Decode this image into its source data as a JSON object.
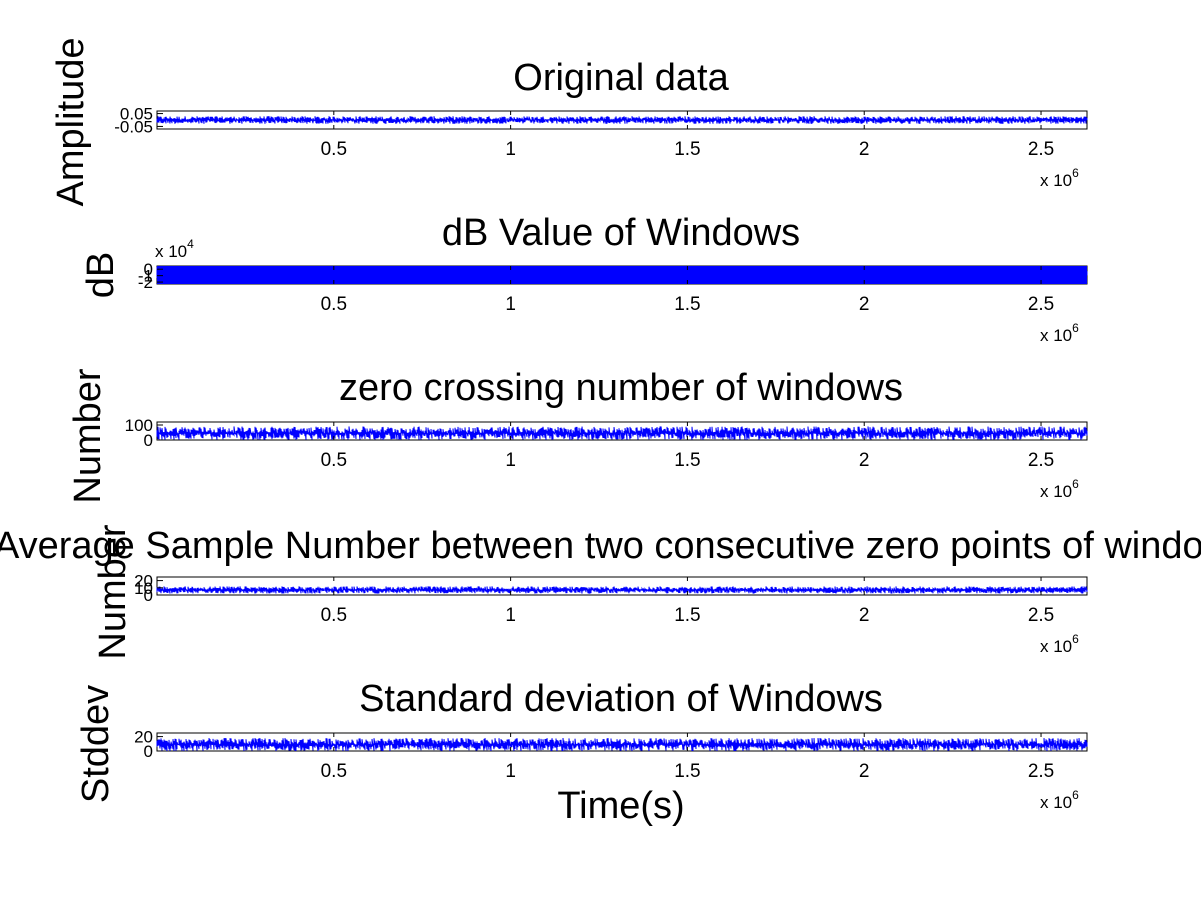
{
  "figure": {
    "xlabel": "Time(s)",
    "background": "#ffffff",
    "line_color": "#0000ff"
  },
  "chart_data": [
    {
      "type": "line",
      "title": "Original data",
      "ylabel": "Amplitude",
      "xlabel": "",
      "xlim": [
        0,
        2.63
      ],
      "ylim": [
        -0.07,
        0.07
      ],
      "x_tick_values": [
        0.5,
        1,
        1.5,
        2,
        2.5
      ],
      "x_tick_labels": [
        "0.5",
        "1",
        "1.5",
        "2",
        "2.5"
      ],
      "x_multiplier": {
        "base": "x 10",
        "exp": "6"
      },
      "y_tick_values": [
        0.05,
        -0.05
      ],
      "y_tick_labels": [
        "0.05",
        "-0.05"
      ],
      "y_multiplier": null,
      "trace_band": [
        -0.03,
        0.03
      ],
      "series": [
        {
          "color": "#0000ff"
        }
      ]
    },
    {
      "type": "line",
      "title": "dB Value of Windows",
      "ylabel": "dB",
      "xlabel": "",
      "xlim": [
        0,
        2.63
      ],
      "ylim": [
        -2.3,
        0.5
      ],
      "x_tick_values": [
        0.5,
        1,
        1.5,
        2,
        2.5
      ],
      "x_tick_labels": [
        "0.5",
        "1",
        "1.5",
        "2",
        "2.5"
      ],
      "x_multiplier": {
        "base": "x 10",
        "exp": "6"
      },
      "y_tick_values": [
        0,
        -1,
        -2
      ],
      "y_tick_labels": [
        "0",
        "-1",
        "-2"
      ],
      "y_multiplier": {
        "base": "x 10",
        "exp": "4"
      },
      "trace_band": [
        -2.3,
        0.5
      ],
      "series": [
        {
          "color": "#0000ff"
        }
      ]
    },
    {
      "type": "line",
      "title": "zero crossing number of windows",
      "ylabel": "Number",
      "xlabel": "",
      "xlim": [
        0,
        2.63
      ],
      "ylim": [
        0,
        120
      ],
      "x_tick_values": [
        0.5,
        1,
        1.5,
        2,
        2.5
      ],
      "x_tick_labels": [
        "0.5",
        "1",
        "1.5",
        "2",
        "2.5"
      ],
      "x_multiplier": {
        "base": "x 10",
        "exp": "6"
      },
      "y_tick_values": [
        100,
        0
      ],
      "y_tick_labels": [
        "100",
        "0"
      ],
      "y_multiplier": null,
      "trace_band": [
        0,
        90
      ],
      "series": [
        {
          "color": "#0000ff"
        }
      ]
    },
    {
      "type": "line",
      "title": "Average Sample Number between two consecutive zero points of windows",
      "ylabel": "Number",
      "xlabel": "",
      "xlim": [
        0,
        2.63
      ],
      "ylim": [
        0,
        25
      ],
      "x_tick_values": [
        0.5,
        1,
        1.5,
        2,
        2.5
      ],
      "x_tick_labels": [
        "0.5",
        "1",
        "1.5",
        "2",
        "2.5"
      ],
      "x_multiplier": {
        "base": "x 10",
        "exp": "6"
      },
      "y_tick_values": [
        20,
        10,
        0
      ],
      "y_tick_labels": [
        "20",
        "10",
        "0"
      ],
      "y_multiplier": null,
      "trace_band": [
        2,
        12
      ],
      "series": [
        {
          "color": "#0000ff"
        }
      ]
    },
    {
      "type": "line",
      "title": "Standard deviation of Windows",
      "ylabel": "Stddev",
      "xlabel": "Time(s)",
      "xlim": [
        0,
        2.63
      ],
      "ylim": [
        0,
        25
      ],
      "x_tick_values": [
        0.5,
        1,
        1.5,
        2,
        2.5
      ],
      "x_tick_labels": [
        "0.5",
        "1",
        "1.5",
        "2",
        "2.5"
      ],
      "x_multiplier": {
        "base": "x 10",
        "exp": "6"
      },
      "y_tick_values": [
        20,
        0
      ],
      "y_tick_labels": [
        "20",
        "0"
      ],
      "y_multiplier": null,
      "trace_band": [
        0,
        18
      ],
      "series": [
        {
          "color": "#0000ff"
        }
      ]
    }
  ]
}
